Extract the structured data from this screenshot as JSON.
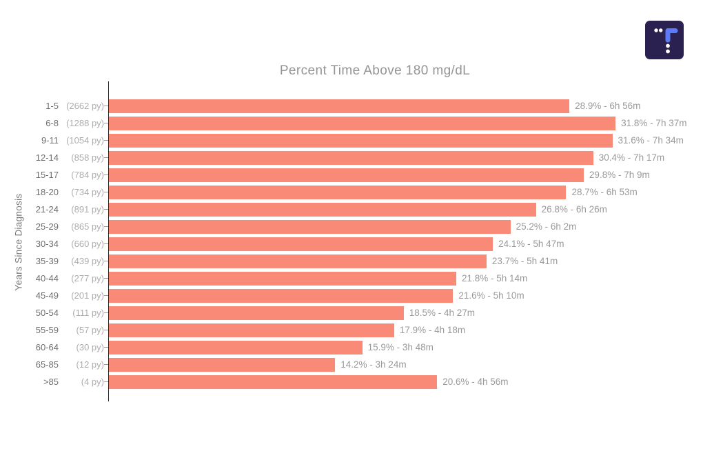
{
  "logo": {
    "name": "tidepool-logo",
    "background_color": "#2a2150",
    "accent_color": "#5d7bf7",
    "dot_color": "#ffffff"
  },
  "chart_data": {
    "type": "bar",
    "orientation": "horizontal",
    "title": "Percent Time Above 180 mg/dL",
    "ylabel": "Years Since Diagnosis",
    "xlabel": "",
    "xlim": [
      0,
      37.2
    ],
    "grid": false,
    "legend": false,
    "bar_color": "#fa8a78",
    "rows": [
      {
        "range": "1-5",
        "py": "(2662 py)",
        "value": 28.9,
        "label": "28.9% - 6h 56m"
      },
      {
        "range": "6-8",
        "py": "(1288 py)",
        "value": 31.8,
        "label": "31.8% - 7h 37m"
      },
      {
        "range": "9-11",
        "py": "(1054 py)",
        "value": 31.6,
        "label": "31.6% - 7h 34m"
      },
      {
        "range": "12-14",
        "py": "(858 py)",
        "value": 30.4,
        "label": "30.4% - 7h 17m"
      },
      {
        "range": "15-17",
        "py": "(784 py)",
        "value": 29.8,
        "label": "29.8% - 7h 9m"
      },
      {
        "range": "18-20",
        "py": "(734 py)",
        "value": 28.7,
        "label": "28.7% - 6h 53m"
      },
      {
        "range": "21-24",
        "py": "(891 py)",
        "value": 26.8,
        "label": "26.8% - 6h 26m"
      },
      {
        "range": "25-29",
        "py": "(865 py)",
        "value": 25.2,
        "label": "25.2% - 6h 2m"
      },
      {
        "range": "30-34",
        "py": "(660 py)",
        "value": 24.1,
        "label": "24.1% - 5h 47m"
      },
      {
        "range": "35-39",
        "py": "(439 py)",
        "value": 23.7,
        "label": "23.7% - 5h 41m"
      },
      {
        "range": "40-44",
        "py": "(277 py)",
        "value": 21.8,
        "label": "21.8% - 5h 14m"
      },
      {
        "range": "45-49",
        "py": "(201 py)",
        "value": 21.6,
        "label": "21.6% - 5h 10m"
      },
      {
        "range": "50-54",
        "py": "(111 py)",
        "value": 18.5,
        "label": "18.5% - 4h 27m"
      },
      {
        "range": "55-59",
        "py": "(57 py)",
        "value": 17.9,
        "label": "17.9% - 4h 18m"
      },
      {
        "range": "60-64",
        "py": "(30 py)",
        "value": 15.9,
        "label": "15.9% - 3h 48m"
      },
      {
        "range": "65-85",
        "py": "(12 py)",
        "value": 14.2,
        "label": "14.2% - 3h 24m"
      },
      {
        "range": ">85",
        "py": "(4 py)",
        "value": 20.6,
        "label": "20.6% - 4h 56m"
      }
    ]
  }
}
